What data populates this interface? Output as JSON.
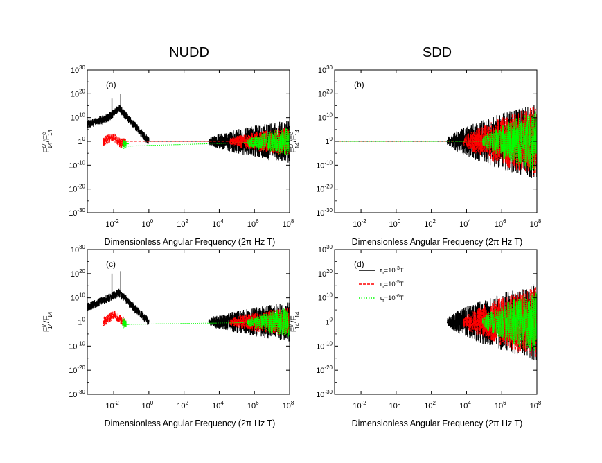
{
  "columns": {
    "left": "NUDD",
    "right": "SDD"
  },
  "colors": {
    "tau_1e-3": "#000000",
    "tau_1e-5": "#ff0000",
    "tau_1e-6": "#00ff00"
  },
  "chart_data": [
    {
      "type": "line",
      "panel": "(a)",
      "ylabel": {
        "F": "F",
        "sup1": "c/",
        "sub1": "14",
        "slash": "/F",
        "sup2": "c",
        "sub2": "14"
      },
      "xlabel": "Dimensionless Angular Frequency (2π Hz T)",
      "x_scale": "log",
      "y_scale": "log",
      "xlim_exp": [
        -3.5,
        8
      ],
      "ylim_exp": [
        -30,
        30
      ],
      "xticks": [
        {
          "base": "10",
          "exp": "-2"
        },
        {
          "base": "10",
          "exp": "0"
        },
        {
          "base": "10",
          "exp": "2"
        },
        {
          "base": "10",
          "exp": "4"
        },
        {
          "base": "10",
          "exp": "6"
        },
        {
          "base": "10",
          "exp": "8"
        }
      ],
      "yticks": [
        {
          "base": "10",
          "exp": "30"
        },
        {
          "base": "10",
          "exp": "20"
        },
        {
          "base": "10",
          "exp": "10"
        },
        {
          "base": "1",
          "exp": "0"
        },
        {
          "base": "10",
          "exp": "-10"
        },
        {
          "base": "10",
          "exp": "-20"
        },
        {
          "base": "10",
          "exp": "-30"
        }
      ],
      "series": [
        {
          "name": "τ_τ=10^-3 T",
          "color": "#000000",
          "trend_log10_x": [
            -3.5,
            -2.3,
            -1.7,
            0,
            0.2,
            3.2,
            4,
            5,
            6,
            7,
            8
          ],
          "trend_log10_y": [
            7,
            10,
            14,
            0,
            0,
            0,
            0,
            0,
            0,
            0,
            0
          ],
          "noise_start_log10_x": 3.4,
          "noise_end_amp": 8,
          "spikes_log10_x": [
            -2.1,
            -1.6
          ],
          "spikes_log10_y": [
            18,
            20
          ]
        },
        {
          "name": "τ_τ=10^-5 T",
          "color": "#ff0000",
          "trend_log10_x": [
            -2.6,
            -2.0,
            -1.6,
            -1.4,
            8
          ],
          "trend_log10_y": [
            0,
            2,
            -1,
            0,
            0
          ],
          "noise_start_log10_x": 4.6,
          "noise_end_amp": 5
        },
        {
          "name": "τ_τ=10^-6 T",
          "color": "#00ff00",
          "trend_log10_x": [
            -1.5,
            -1.3,
            8
          ],
          "trend_log10_y": [
            -1,
            -2,
            0
          ],
          "noise_start_log10_x": 5.6,
          "noise_end_amp": 5
        }
      ]
    },
    {
      "type": "line",
      "panel": "(b)",
      "ylabel": {
        "F": "F",
        "sup1": "c/",
        "sub1": "14",
        "slash": "/F",
        "sup2": "c",
        "sub2": "14"
      },
      "xlabel": "Dimensionless Angular Frequency (2π Hz T)",
      "x_scale": "log",
      "y_scale": "log",
      "xlim_exp": [
        -3.5,
        8
      ],
      "ylim_exp": [
        -30,
        30
      ],
      "xticks": [
        {
          "base": "10",
          "exp": "-2"
        },
        {
          "base": "10",
          "exp": "0"
        },
        {
          "base": "10",
          "exp": "2"
        },
        {
          "base": "10",
          "exp": "4"
        },
        {
          "base": "10",
          "exp": "6"
        },
        {
          "base": "10",
          "exp": "8"
        }
      ],
      "yticks": [
        {
          "base": "10",
          "exp": "30"
        },
        {
          "base": "10",
          "exp": "20"
        },
        {
          "base": "10",
          "exp": "10"
        },
        {
          "base": "1",
          "exp": "0"
        },
        {
          "base": "10",
          "exp": "-10"
        },
        {
          "base": "10",
          "exp": "-20"
        },
        {
          "base": "10",
          "exp": "-30"
        }
      ],
      "series": [
        {
          "name": "τ_τ=10^-3 T",
          "color": "#000000",
          "noise_start_log10_x": 2.9,
          "noise_end_amp": 15
        },
        {
          "name": "τ_τ=10^-5 T",
          "color": "#ff0000",
          "noise_start_log10_x": 3.8,
          "noise_end_amp": 14
        },
        {
          "name": "τ_τ=10^-6 T",
          "color": "#00ff00",
          "noise_start_log10_x": 4.9,
          "noise_end_amp": 12
        }
      ]
    },
    {
      "type": "line",
      "panel": "(c)",
      "ylabel": {
        "F": "F",
        "sup1": "i/",
        "sub1": "14",
        "slash": "/F",
        "sup2": "i",
        "sub2": "14"
      },
      "xlabel": "Dimensionless Angular Frequency (2π Hz T)",
      "x_scale": "log",
      "y_scale": "log",
      "xlim_exp": [
        -3.5,
        8
      ],
      "ylim_exp": [
        -30,
        30
      ],
      "xticks": [
        {
          "base": "10",
          "exp": "-2"
        },
        {
          "base": "10",
          "exp": "0"
        },
        {
          "base": "10",
          "exp": "2"
        },
        {
          "base": "10",
          "exp": "4"
        },
        {
          "base": "10",
          "exp": "6"
        },
        {
          "base": "10",
          "exp": "8"
        }
      ],
      "yticks": [
        {
          "base": "10",
          "exp": "30"
        },
        {
          "base": "10",
          "exp": "20"
        },
        {
          "base": "10",
          "exp": "10"
        },
        {
          "base": "1",
          "exp": "0"
        },
        {
          "base": "10",
          "exp": "-10"
        },
        {
          "base": "10",
          "exp": "-20"
        },
        {
          "base": "10",
          "exp": "-30"
        }
      ],
      "series": [
        {
          "name": "τ_τ=10^-3 T",
          "color": "#000000",
          "trend_log10_x": [
            -3.5,
            -2.3,
            -1.7,
            0,
            0.2,
            3.2,
            4,
            5,
            6,
            7,
            8
          ],
          "trend_log10_y": [
            6,
            10,
            12,
            0,
            0,
            0,
            0,
            0,
            0,
            0,
            0
          ],
          "noise_start_log10_x": 3.4,
          "noise_end_amp": 7,
          "spikes_log10_x": [
            -2.1,
            -1.6
          ],
          "spikes_log10_y": [
            20,
            21
          ]
        },
        {
          "name": "τ_τ=10^-5 T",
          "color": "#ff0000",
          "trend_log10_x": [
            -2.6,
            -2.0,
            -1.6,
            -1.4,
            8
          ],
          "trend_log10_y": [
            0,
            3,
            1,
            0,
            0
          ],
          "noise_start_log10_x": 4.6,
          "noise_end_amp": 5
        },
        {
          "name": "τ_τ=10^-6 T",
          "color": "#00ff00",
          "trend_log10_x": [
            -1.5,
            -1.3,
            8
          ],
          "trend_log10_y": [
            0,
            -1,
            0
          ],
          "noise_start_log10_x": 5.6,
          "noise_end_amp": 5
        }
      ]
    },
    {
      "type": "line",
      "panel": "(d)",
      "ylabel": {
        "F": "F",
        "sup1": "i/",
        "sub1": "14",
        "slash": "/F",
        "sup2": "i",
        "sub2": "14"
      },
      "xlabel": "Dimensionless Angular Frequency (2π Hz T)",
      "x_scale": "log",
      "y_scale": "log",
      "xlim_exp": [
        -3.5,
        8
      ],
      "ylim_exp": [
        -30,
        30
      ],
      "xticks": [
        {
          "base": "10",
          "exp": "-2"
        },
        {
          "base": "10",
          "exp": "0"
        },
        {
          "base": "10",
          "exp": "2"
        },
        {
          "base": "10",
          "exp": "4"
        },
        {
          "base": "10",
          "exp": "6"
        },
        {
          "base": "10",
          "exp": "8"
        }
      ],
      "yticks": [
        {
          "base": "10",
          "exp": "30"
        },
        {
          "base": "10",
          "exp": "20"
        },
        {
          "base": "10",
          "exp": "10"
        },
        {
          "base": "1",
          "exp": "0"
        },
        {
          "base": "10",
          "exp": "-10"
        },
        {
          "base": "10",
          "exp": "-20"
        },
        {
          "base": "10",
          "exp": "-30"
        }
      ],
      "legend": {
        "placement": "top-left",
        "entries": [
          {
            "color": "#000000",
            "dash": "solid",
            "tau": "τ",
            "sub": "τ",
            "text": "=10",
            "exp": "-3",
            "unit": "T"
          },
          {
            "color": "#ff0000",
            "dash": "dashed",
            "tau": "τ",
            "sub": "τ",
            "text": "=10",
            "exp": "-5",
            "unit": "T"
          },
          {
            "color": "#00ff00",
            "dash": "dotted",
            "tau": "τ",
            "sub": "τ",
            "text": "=10",
            "exp": "-6",
            "unit": "T"
          }
        ]
      },
      "series": [
        {
          "name": "τ_τ=10^-3 T",
          "color": "#000000",
          "noise_start_log10_x": 2.9,
          "noise_end_amp": 15
        },
        {
          "name": "τ_τ=10^-5 T",
          "color": "#ff0000",
          "noise_start_log10_x": 3.8,
          "noise_end_amp": 14
        },
        {
          "name": "τ_τ=10^-6 T",
          "color": "#00ff00",
          "noise_start_log10_x": 4.9,
          "noise_end_amp": 12
        }
      ]
    }
  ]
}
